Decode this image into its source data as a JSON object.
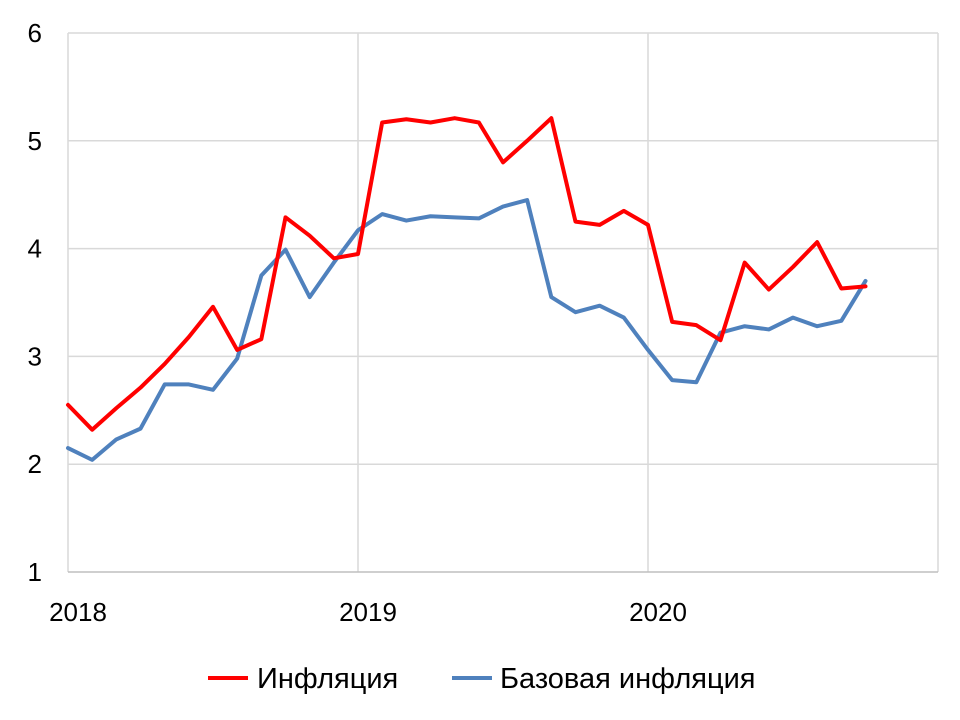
{
  "chart_data": {
    "type": "line",
    "title": "",
    "xlabel": "",
    "ylabel": "",
    "x_tick_labels": [
      "2018",
      "2019",
      "2020"
    ],
    "y_tick_labels": [
      "1",
      "2",
      "3",
      "4",
      "5",
      "6"
    ],
    "ylim": [
      1,
      6
    ],
    "xlim": [
      "2018-01",
      "2021-01"
    ],
    "grid": true,
    "legend_position": "bottom",
    "x": [
      "2018-01",
      "2018-02",
      "2018-03",
      "2018-04",
      "2018-05",
      "2018-06",
      "2018-07",
      "2018-08",
      "2018-09",
      "2018-10",
      "2018-11",
      "2018-12",
      "2019-01",
      "2019-02",
      "2019-03",
      "2019-04",
      "2019-05",
      "2019-06",
      "2019-07",
      "2019-08",
      "2019-09",
      "2019-10",
      "2019-11",
      "2019-12",
      "2020-01",
      "2020-02",
      "2020-03",
      "2020-04",
      "2020-05",
      "2020-06",
      "2020-07",
      "2020-08",
      "2020-09",
      "2020-10"
    ],
    "series": [
      {
        "name": "Инфляция",
        "color": "#ff0000",
        "values": [
          2.55,
          2.32,
          2.52,
          2.71,
          2.93,
          3.18,
          3.46,
          3.06,
          3.16,
          4.29,
          4.12,
          3.91,
          3.95,
          5.17,
          5.2,
          5.17,
          5.21,
          5.17,
          4.8,
          5.0,
          5.21,
          4.25,
          4.22,
          4.35,
          4.22,
          3.32,
          3.29,
          3.15,
          3.87,
          3.62,
          3.83,
          4.06,
          3.63,
          3.65
        ]
      },
      {
        "name": "Базовая инфляция",
        "color": "#4f81bd",
        "values": [
          2.15,
          2.04,
          2.23,
          2.33,
          2.74,
          2.74,
          2.69,
          2.98,
          3.75,
          3.99,
          3.55,
          3.87,
          4.17,
          4.32,
          4.26,
          4.3,
          4.29,
          4.28,
          4.39,
          4.45,
          3.55,
          3.41,
          3.47,
          3.36,
          3.06,
          2.78,
          2.76,
          3.22,
          3.28,
          3.25,
          3.36,
          3.28,
          3.33,
          3.7
        ]
      }
    ]
  }
}
